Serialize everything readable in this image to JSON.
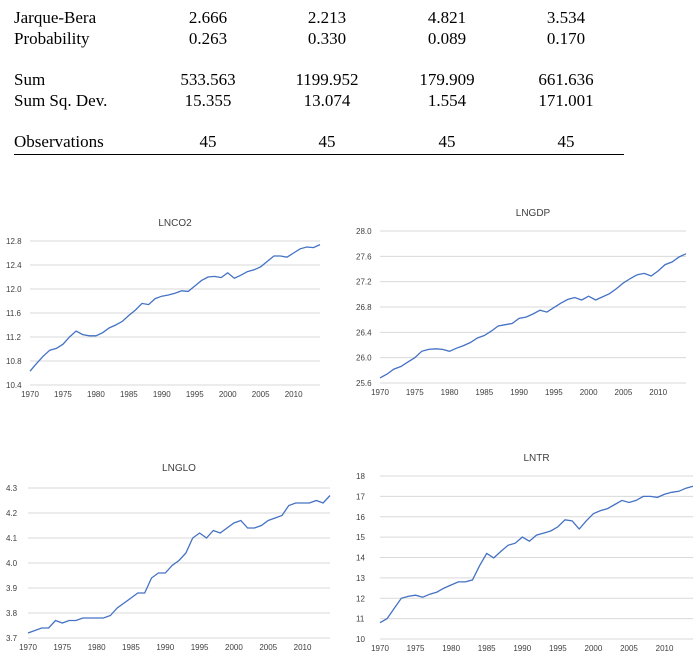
{
  "stats_table": {
    "rows": [
      {
        "label": "Jarque-Bera",
        "values": [
          "2.666",
          "2.213",
          "4.821",
          "3.534"
        ]
      },
      {
        "label": "Probability",
        "values": [
          "0.263",
          "0.330",
          "0.089",
          "0.170"
        ]
      },
      {
        "label": "Sum",
        "values": [
          "533.563",
          "1199.952",
          "179.909",
          "661.636"
        ]
      },
      {
        "label": "Sum Sq. Dev.",
        "values": [
          "15.355",
          "13.074",
          "1.554",
          "171.001"
        ]
      },
      {
        "label": "Observations",
        "values": [
          "45",
          "45",
          "45",
          "45"
        ]
      }
    ]
  },
  "charts": {
    "line_color": "#4472C4",
    "grid_color": "#d9d9d9"
  },
  "chart_data": [
    {
      "type": "line",
      "title": "LNCO2",
      "xlim": [
        1970,
        2014
      ],
      "ylim": [
        10.4,
        12.8
      ],
      "x_ticks": [
        "1970",
        "1975",
        "1980",
        "1985",
        "1990",
        "1995",
        "2000",
        "2005",
        "2010"
      ],
      "y_ticks": [
        "10.4",
        "10.8",
        "11.2",
        "11.6",
        "12.0",
        "12.4",
        "12.8"
      ],
      "grid": true,
      "x": [
        1970,
        1971,
        1972,
        1973,
        1974,
        1975,
        1976,
        1977,
        1978,
        1979,
        1980,
        1981,
        1982,
        1983,
        1984,
        1985,
        1986,
        1987,
        1988,
        1989,
        1990,
        1991,
        1992,
        1993,
        1994,
        1995,
        1996,
        1997,
        1998,
        1999,
        2000,
        2001,
        2002,
        2003,
        2004,
        2005,
        2006,
        2007,
        2008,
        2009,
        2010,
        2011,
        2012,
        2013,
        2014
      ],
      "values": [
        10.63,
        10.76,
        10.88,
        10.98,
        11.01,
        11.08,
        11.2,
        11.3,
        11.24,
        11.22,
        11.22,
        11.27,
        11.35,
        11.4,
        11.46,
        11.56,
        11.65,
        11.76,
        11.74,
        11.84,
        11.88,
        11.9,
        11.93,
        11.97,
        11.96,
        12.05,
        12.14,
        12.2,
        12.21,
        12.19,
        12.27,
        12.18,
        12.23,
        12.29,
        12.32,
        12.37,
        12.46,
        12.55,
        12.55,
        12.53,
        12.6,
        12.67,
        12.7,
        12.69,
        12.74
      ]
    },
    {
      "type": "line",
      "title": "LNGDP",
      "xlim": [
        1970,
        2014
      ],
      "ylim": [
        25.6,
        28.0
      ],
      "x_ticks": [
        "1970",
        "1975",
        "1980",
        "1985",
        "1990",
        "1995",
        "2000",
        "2005",
        "2010"
      ],
      "y_ticks": [
        "25.6",
        "26.0",
        "26.4",
        "26.8",
        "27.2",
        "27.6",
        "28.0"
      ],
      "grid": true,
      "x": [
        1970,
        1971,
        1972,
        1973,
        1974,
        1975,
        1976,
        1977,
        1978,
        1979,
        1980,
        1981,
        1982,
        1983,
        1984,
        1985,
        1986,
        1987,
        1988,
        1989,
        1990,
        1991,
        1992,
        1993,
        1994,
        1995,
        1996,
        1997,
        1998,
        1999,
        2000,
        2001,
        2002,
        2003,
        2004,
        2005,
        2006,
        2007,
        2008,
        2009,
        2010,
        2011,
        2012,
        2013,
        2014
      ],
      "values": [
        25.68,
        25.74,
        25.82,
        25.86,
        25.93,
        26.0,
        26.1,
        26.13,
        26.14,
        26.13,
        26.1,
        26.15,
        26.19,
        26.24,
        26.31,
        26.35,
        26.42,
        26.5,
        26.52,
        26.54,
        26.62,
        26.64,
        26.69,
        26.75,
        26.72,
        26.79,
        26.86,
        26.92,
        26.95,
        26.91,
        26.97,
        26.91,
        26.96,
        27.01,
        27.09,
        27.18,
        27.25,
        27.31,
        27.33,
        27.29,
        27.37,
        27.47,
        27.51,
        27.59,
        27.64
      ]
    },
    {
      "type": "line",
      "title": "LNGLO",
      "xlim": [
        1970,
        2014
      ],
      "ylim": [
        3.7,
        4.3
      ],
      "x_ticks": [
        "1970",
        "1975",
        "1980",
        "1985",
        "1990",
        "1995",
        "2000",
        "2005",
        "2010"
      ],
      "y_ticks": [
        "3.7",
        "3.8",
        "3.9",
        "4.0",
        "4.1",
        "4.2",
        "4.3"
      ],
      "grid": true,
      "x": [
        1970,
        1971,
        1972,
        1973,
        1974,
        1975,
        1976,
        1977,
        1978,
        1979,
        1980,
        1981,
        1982,
        1983,
        1984,
        1985,
        1986,
        1987,
        1988,
        1989,
        1990,
        1991,
        1992,
        1993,
        1994,
        1995,
        1996,
        1997,
        1998,
        1999,
        2000,
        2001,
        2002,
        2003,
        2004,
        2005,
        2006,
        2007,
        2008,
        2009,
        2010,
        2011,
        2012,
        2013,
        2014
      ],
      "values": [
        3.72,
        3.73,
        3.74,
        3.74,
        3.77,
        3.76,
        3.77,
        3.77,
        3.78,
        3.78,
        3.78,
        3.78,
        3.79,
        3.82,
        3.84,
        3.86,
        3.88,
        3.88,
        3.94,
        3.96,
        3.96,
        3.99,
        4.01,
        4.04,
        4.1,
        4.12,
        4.1,
        4.13,
        4.12,
        4.14,
        4.16,
        4.17,
        4.14,
        4.14,
        4.15,
        4.17,
        4.18,
        4.19,
        4.23,
        4.24,
        4.24,
        4.24,
        4.25,
        4.24,
        4.27
      ]
    },
    {
      "type": "line",
      "title": "LNTR",
      "xlim": [
        1970,
        2014
      ],
      "ylim": [
        10,
        18
      ],
      "x_ticks": [
        "1970",
        "1975",
        "1980",
        "1985",
        "1990",
        "1995",
        "2000",
        "2005",
        "2010"
      ],
      "y_ticks": [
        "10",
        "11",
        "12",
        "13",
        "14",
        "15",
        "16",
        "17",
        "18"
      ],
      "grid": true,
      "x": [
        1970,
        1971,
        1972,
        1973,
        1974,
        1975,
        1976,
        1977,
        1978,
        1979,
        1980,
        1981,
        1982,
        1983,
        1984,
        1985,
        1986,
        1987,
        1988,
        1989,
        1990,
        1991,
        1992,
        1993,
        1994,
        1995,
        1996,
        1997,
        1998,
        1999,
        2000,
        2001,
        2002,
        2003,
        2004,
        2005,
        2006,
        2007,
        2008,
        2009,
        2010,
        2011,
        2012,
        2013,
        2014
      ],
      "values": [
        10.8,
        11.0,
        11.5,
        12.0,
        12.1,
        12.15,
        12.05,
        12.2,
        12.3,
        12.5,
        12.65,
        12.8,
        12.8,
        12.9,
        13.6,
        14.2,
        13.98,
        14.3,
        14.6,
        14.7,
        15.0,
        14.8,
        15.1,
        15.2,
        15.3,
        15.5,
        15.85,
        15.8,
        15.4,
        15.8,
        16.15,
        16.3,
        16.4,
        16.6,
        16.8,
        16.7,
        16.8,
        17.0,
        17.0,
        16.95,
        17.1,
        17.2,
        17.25,
        17.4,
        17.5
      ]
    }
  ]
}
